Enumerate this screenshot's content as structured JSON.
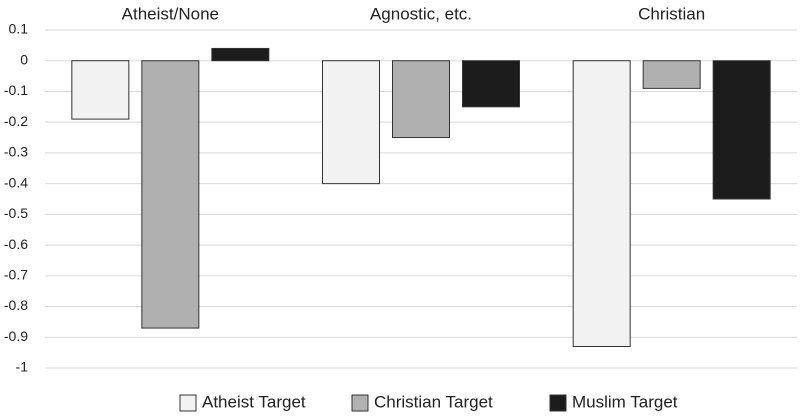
{
  "chart_data": {
    "type": "bar",
    "categories": [
      "Atheist/None",
      "Agnostic, etc.",
      "Christian"
    ],
    "series": [
      {
        "name": "Atheist Target",
        "color": "#f2f2f2",
        "values": [
          -0.19,
          -0.4,
          -0.93
        ]
      },
      {
        "name": "Christian Target",
        "color": "#b0b0b0",
        "values": [
          -0.87,
          -0.25,
          -0.09
        ]
      },
      {
        "name": "Muslim Target",
        "color": "#1c1c1c",
        "values": [
          0.04,
          -0.15,
          -0.45
        ]
      }
    ],
    "ylim": [
      -1,
      0.1
    ],
    "yticks": [
      0.1,
      0,
      -0.1,
      -0.2,
      -0.3,
      -0.4,
      -0.5,
      -0.6,
      -0.7,
      -0.8,
      -0.9,
      -1
    ],
    "grid": true,
    "legend": "bottom"
  }
}
